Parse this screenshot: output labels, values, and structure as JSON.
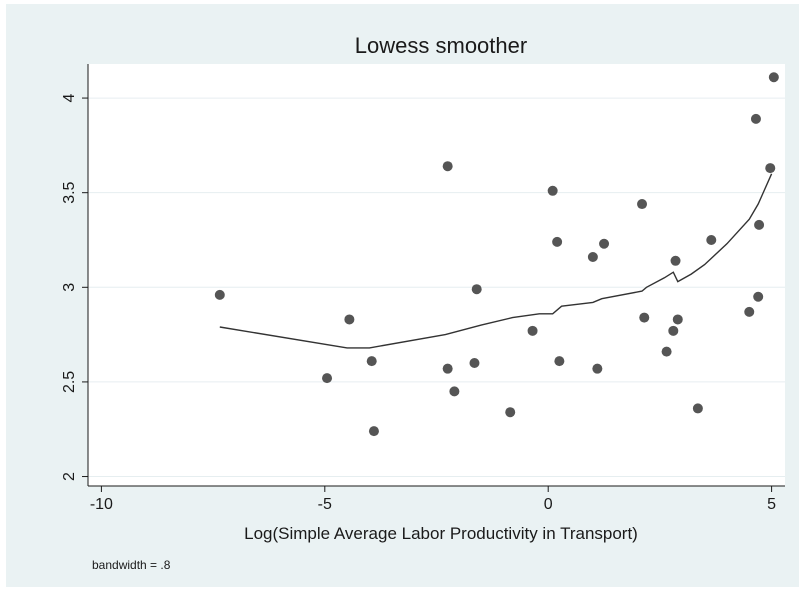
{
  "chart_data": {
    "type": "scatter",
    "title": "Lowess smoother",
    "xlabel": "Log(Simple Average Labor Productivity in Transport)",
    "ylabel": "",
    "note": "bandwidth = .8",
    "xlim": [
      -10.3,
      5.3
    ],
    "ylim": [
      1.95,
      4.18
    ],
    "xticks": [
      -10,
      -5,
      0,
      5
    ],
    "xtick_labels": [
      "-10",
      "-5",
      "0",
      "5"
    ],
    "yticks": [
      2,
      2.5,
      3,
      3.5,
      4
    ],
    "ytick_labels": [
      "2",
      "2.5",
      "3",
      "3.5",
      "4"
    ],
    "grid": true,
    "legend": "none",
    "colors": {
      "background": "#eaf2f3",
      "plot_area": "#ffffff",
      "points": "#555555",
      "line": "#333333",
      "grid": "#e6eef0"
    },
    "series": [
      {
        "kind": "points",
        "x": [
          -7.35,
          -4.95,
          -4.45,
          -3.95,
          -3.9,
          -2.25,
          -2.25,
          -2.1,
          -1.65,
          -1.6,
          -0.85,
          -0.35,
          0.1,
          0.2,
          0.25,
          1.0,
          1.1,
          1.25,
          2.1,
          2.15,
          2.65,
          2.8,
          2.85,
          2.9,
          3.35,
          3.65,
          4.5,
          4.65,
          4.7,
          4.72,
          4.97,
          5.05
        ],
        "y": [
          2.96,
          2.52,
          2.83,
          2.61,
          2.24,
          3.64,
          2.57,
          2.45,
          2.6,
          2.99,
          2.34,
          2.77,
          3.51,
          3.24,
          2.61,
          3.16,
          2.57,
          3.23,
          3.44,
          2.84,
          2.66,
          2.77,
          3.14,
          2.83,
          2.36,
          3.25,
          2.87,
          3.89,
          2.95,
          3.33,
          3.63,
          4.11
        ]
      },
      {
        "kind": "line",
        "x": [
          -7.35,
          -4.5,
          -4.0,
          -2.3,
          -1.5,
          -0.8,
          -0.2,
          0.1,
          0.3,
          1.0,
          1.2,
          2.1,
          2.2,
          2.6,
          2.8,
          2.9,
          3.2,
          3.5,
          4.0,
          4.5,
          4.7,
          5.0
        ],
        "y": [
          2.79,
          2.68,
          2.68,
          2.75,
          2.8,
          2.84,
          2.86,
          2.86,
          2.9,
          2.92,
          2.94,
          2.98,
          3.0,
          3.05,
          3.08,
          3.03,
          3.07,
          3.12,
          3.23,
          3.36,
          3.44,
          3.6
        ]
      }
    ]
  }
}
